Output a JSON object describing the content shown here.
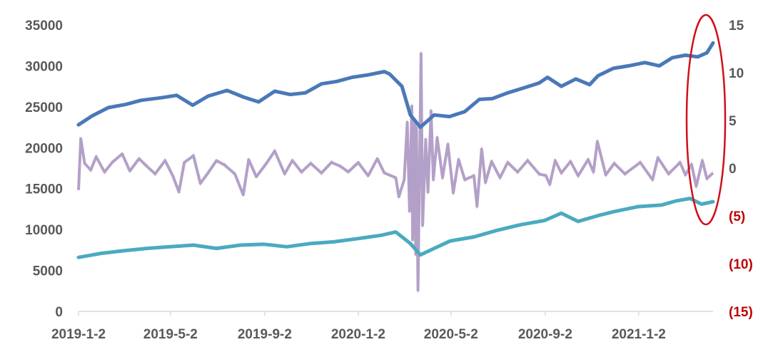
{
  "chart_data": {
    "type": "line",
    "title": "",
    "xlabel": "",
    "ylabel": "",
    "x_ticks": [
      "2019-1-2",
      "2019-5-2",
      "2019-9-2",
      "2020-1-2",
      "2020-5-2",
      "2020-9-2",
      "2021-1-2"
    ],
    "x_range": [
      "2019-01-02",
      "2021-04-09"
    ],
    "y_left": {
      "ticks": [
        "35000",
        "30000",
        "25000",
        "20000",
        "15000",
        "10000",
        "5000",
        "0"
      ],
      "ylim": [
        0,
        35000
      ]
    },
    "y_right": {
      "ticks": [
        "15",
        "10",
        "5",
        "0",
        "(5)",
        "(10)",
        "(15)"
      ],
      "ylim": [
        -15,
        15
      ]
    },
    "colors": {
      "series_top": "#4a78b8",
      "series_bottom": "#4aaac0",
      "series_thick_osc": "#b3a0c8",
      "series_thin_osc": "#f1d4c6",
      "annotation": "#d0101a",
      "negative_ticks": "#c00000",
      "axis": "#d9d9d9"
    },
    "series": [
      {
        "axis": "left",
        "x": [
          "2019-01-02",
          "2019-01-20",
          "2019-02-10",
          "2019-03-05",
          "2019-03-25",
          "2019-04-20",
          "2019-05-10",
          "2019-05-31",
          "2019-06-20",
          "2019-07-15",
          "2019-08-05",
          "2019-08-25",
          "2019-09-15",
          "2019-10-05",
          "2019-10-25",
          "2019-11-15",
          "2019-12-05",
          "2019-12-25",
          "2020-01-15",
          "2020-02-05",
          "2020-02-12",
          "2020-02-28",
          "2020-03-10",
          "2020-03-23",
          "2020-04-10",
          "2020-04-30",
          "2020-05-20",
          "2020-06-08",
          "2020-06-25",
          "2020-07-15",
          "2020-08-05",
          "2020-08-25",
          "2020-09-05",
          "2020-09-23",
          "2020-10-12",
          "2020-10-30",
          "2020-11-10",
          "2020-11-30",
          "2020-12-20",
          "2021-01-10",
          "2021-01-29",
          "2021-02-15",
          "2021-03-04",
          "2021-03-20",
          "2021-04-01",
          "2021-04-09"
        ],
        "values": [
          22800,
          23900,
          24900,
          25300,
          25800,
          26100,
          26400,
          25200,
          26300,
          27000,
          26200,
          25600,
          26900,
          26500,
          26700,
          27800,
          28100,
          28600,
          28900,
          29300,
          29000,
          27500,
          24000,
          22500,
          24000,
          23800,
          24400,
          25900,
          26000,
          26700,
          27300,
          27900,
          28600,
          27500,
          28400,
          27700,
          28800,
          29700,
          30000,
          30400,
          30000,
          31000,
          31300,
          31100,
          31600,
          32800
        ]
      },
      {
        "axis": "left",
        "x": [
          "2019-01-02",
          "2019-02-01",
          "2019-03-01",
          "2019-04-01",
          "2019-05-01",
          "2019-06-01",
          "2019-07-01",
          "2019-08-01",
          "2019-09-01",
          "2019-10-01",
          "2019-11-01",
          "2019-12-01",
          "2020-01-02",
          "2020-02-01",
          "2020-02-20",
          "2020-03-10",
          "2020-03-23",
          "2020-04-10",
          "2020-05-01",
          "2020-06-01",
          "2020-07-01",
          "2020-08-01",
          "2020-09-01",
          "2020-09-23",
          "2020-10-15",
          "2020-11-10",
          "2020-12-01",
          "2021-01-01",
          "2021-02-01",
          "2021-02-20",
          "2021-03-10",
          "2021-03-25",
          "2021-04-09"
        ],
        "values": [
          6600,
          7100,
          7400,
          7700,
          7900,
          8100,
          7700,
          8100,
          8200,
          7900,
          8300,
          8500,
          8900,
          9300,
          9700,
          8300,
          6900,
          7700,
          8600,
          9100,
          9900,
          10600,
          11100,
          12000,
          11000,
          11700,
          12200,
          12800,
          13000,
          13500,
          13800,
          13100,
          13400
        ]
      },
      {
        "axis": "right",
        "x": [
          "2019-01-02",
          "2019-01-05",
          "2019-01-10",
          "2019-01-18",
          "2019-01-25",
          "2019-02-05",
          "2019-02-15",
          "2019-02-28",
          "2019-03-10",
          "2019-03-22",
          "2019-04-01",
          "2019-04-12",
          "2019-04-25",
          "2019-05-05",
          "2019-05-13",
          "2019-05-20",
          "2019-06-01",
          "2019-06-10",
          "2019-06-20",
          "2019-07-01",
          "2019-07-12",
          "2019-07-25",
          "2019-08-05",
          "2019-08-12",
          "2019-08-22",
          "2019-09-05",
          "2019-09-15",
          "2019-09-28",
          "2019-10-08",
          "2019-10-20",
          "2019-11-01",
          "2019-11-15",
          "2019-11-28",
          "2019-12-10",
          "2019-12-20",
          "2020-01-02",
          "2020-01-15",
          "2020-01-27",
          "2020-02-05",
          "2020-02-20",
          "2020-02-24",
          "2020-03-02",
          "2020-03-06",
          "2020-03-09",
          "2020-03-12",
          "2020-03-13",
          "2020-03-16",
          "2020-03-17",
          "2020-03-18",
          "2020-03-20",
          "2020-03-24",
          "2020-03-26",
          "2020-03-30",
          "2020-04-02",
          "2020-04-06",
          "2020-04-09",
          "2020-04-14",
          "2020-04-21",
          "2020-04-28",
          "2020-05-05",
          "2020-05-12",
          "2020-05-20",
          "2020-06-01",
          "2020-06-05",
          "2020-06-11",
          "2020-06-16",
          "2020-06-24",
          "2020-07-05",
          "2020-07-15",
          "2020-07-28",
          "2020-08-10",
          "2020-08-25",
          "2020-09-03",
          "2020-09-08",
          "2020-09-15",
          "2020-09-23",
          "2020-10-05",
          "2020-10-15",
          "2020-10-28",
          "2020-11-04",
          "2020-11-09",
          "2020-11-20",
          "2020-12-01",
          "2020-12-15",
          "2021-01-04",
          "2021-01-20",
          "2021-01-27",
          "2021-02-10",
          "2021-02-25",
          "2021-03-04",
          "2021-03-12",
          "2021-03-18",
          "2021-03-26",
          "2021-04-01",
          "2021-04-09"
        ],
        "values": [
          -2.3,
          3.1,
          0.5,
          -0.2,
          1.2,
          -0.4,
          0.6,
          1.5,
          -0.3,
          1.0,
          0.2,
          -0.6,
          0.8,
          -0.8,
          -2.5,
          0.6,
          1.3,
          -1.6,
          -0.5,
          0.8,
          0.3,
          -0.6,
          -2.8,
          0.9,
          -0.9,
          0.6,
          1.8,
          -0.6,
          0.8,
          -0.4,
          0.5,
          -0.5,
          0.6,
          0.2,
          -0.4,
          0.6,
          -0.8,
          1.0,
          -0.5,
          -1.0,
          -3.0,
          -1.2,
          4.8,
          -4.5,
          6.5,
          -7.5,
          5.0,
          -9.0,
          4.2,
          -12.8,
          12.0,
          -6.0,
          3.0,
          -2.5,
          6.0,
          -1.2,
          3.2,
          -1.0,
          2.5,
          -2.6,
          0.9,
          -1.2,
          -0.8,
          -4.0,
          2.0,
          -1.5,
          0.7,
          -1.0,
          0.6,
          -0.4,
          0.8,
          -0.6,
          -0.8,
          -1.7,
          0.8,
          -0.5,
          0.7,
          -0.8,
          0.9,
          -0.4,
          2.8,
          -0.7,
          0.5,
          -0.6,
          0.6,
          -1.2,
          1.1,
          -0.6,
          0.6,
          -0.7,
          0.4,
          -1.9,
          0.8,
          -1.1,
          -0.5
        ]
      }
    ],
    "annotations": [
      {
        "type": "ellipse",
        "description": "red ellipse around end of series on right axis"
      }
    ]
  }
}
